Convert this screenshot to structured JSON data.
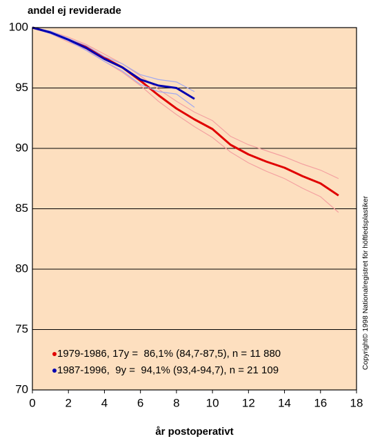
{
  "chart_data": {
    "type": "line",
    "y_label": "andel ej reviderade",
    "x_label": "år postoperativt",
    "copyright": "Copyright© 1998 Nationalregistret för höftledsplastiker",
    "x": [
      0,
      1,
      2,
      3,
      4,
      5,
      6,
      7,
      8,
      9,
      10,
      11,
      12,
      13,
      14,
      15,
      16,
      17
    ],
    "series": [
      {
        "name": "1979-1986, 17y =  86,1% (84,7-87,5), n = 11 880",
        "color": "#e00000",
        "ci_color": "#f4a0a0",
        "values": [
          100,
          99.6,
          99.0,
          98.4,
          97.5,
          96.7,
          95.6,
          94.4,
          93.3,
          92.4,
          91.6,
          90.3,
          89.5,
          88.9,
          88.4,
          87.7,
          87.1,
          86.1
        ],
        "upper": [
          100,
          99.7,
          99.2,
          98.6,
          97.8,
          97.0,
          96.0,
          94.9,
          93.9,
          93.0,
          92.3,
          91.0,
          90.3,
          89.8,
          89.3,
          88.7,
          88.2,
          87.5
        ],
        "lower": [
          100,
          99.5,
          98.8,
          98.2,
          97.2,
          96.3,
          95.2,
          93.9,
          92.8,
          91.8,
          90.9,
          89.7,
          88.8,
          88.1,
          87.5,
          86.7,
          86.0,
          84.7
        ]
      },
      {
        "name": "1987-1996,  9y =  94,1% (93,4-94,7), n = 21 109",
        "color": "#0000b0",
        "ci_color": "#a0a8f0",
        "values": [
          100,
          99.6,
          99.0,
          98.3,
          97.4,
          96.7,
          95.7,
          95.2,
          95.0,
          94.1,
          null,
          null,
          null,
          null,
          null,
          null,
          null,
          null
        ],
        "upper": [
          100,
          99.7,
          99.1,
          98.5,
          97.6,
          97.0,
          96.1,
          95.7,
          95.5,
          94.7,
          null,
          null,
          null,
          null,
          null,
          null,
          null,
          null
        ],
        "lower": [
          100,
          99.5,
          98.9,
          98.1,
          97.2,
          96.4,
          95.3,
          94.7,
          94.5,
          93.4,
          null,
          null,
          null,
          null,
          null,
          null,
          null,
          null
        ]
      }
    ],
    "xlim": [
      0,
      18
    ],
    "ylim": [
      70,
      100
    ],
    "xticks": [
      0,
      2,
      4,
      6,
      8,
      10,
      12,
      14,
      16,
      18
    ],
    "yticks": [
      70,
      75,
      80,
      85,
      90,
      95,
      100
    ],
    "grid": true,
    "legend": "lower left",
    "background": "#fddfbf"
  }
}
